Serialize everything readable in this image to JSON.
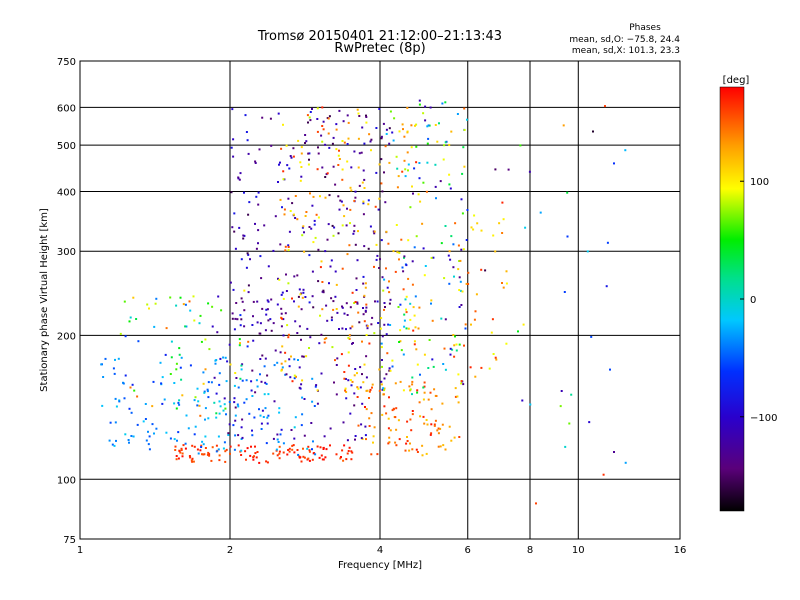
{
  "chart_data": {
    "type": "scatter",
    "title": "Tromsø 20150401 21:12:00–21:13:43",
    "subtitle": "RwPretec (8p)",
    "xlabel": "Frequency [MHz]",
    "ylabel": "Stationary phase Virtual Height [km]",
    "x_scale": "log",
    "y_scale": "log",
    "xlim": [
      1,
      16
    ],
    "ylim": [
      75,
      750
    ],
    "x_ticks": [
      1,
      2,
      4,
      6,
      8,
      10,
      16
    ],
    "x_tick_labels": [
      "1",
      "2",
      "4",
      "6",
      "8",
      "10",
      "16"
    ],
    "y_ticks": [
      75,
      100,
      200,
      300,
      400,
      500,
      600,
      750
    ],
    "y_tick_labels": [
      "75",
      "100",
      "200",
      "300",
      "400",
      "500",
      "600",
      "750"
    ],
    "grid": true,
    "stats": {
      "heading": "Phases",
      "line_o": "mean, sd,O: −75.8, 24.4",
      "line_x": "mean, sd,X: 101.3, 23.3"
    },
    "colorbar": {
      "label": "[deg]",
      "range": [
        -180,
        180
      ],
      "ticks": [
        100,
        0,
        -100
      ],
      "tick_labels": [
        "100",
        "0",
        "−100"
      ]
    },
    "groups": [
      {
        "x_min": 1.55,
        "x_max": 3.6,
        "y_min": 108,
        "y_max": 118,
        "phase_min": 150,
        "phase_max": 180,
        "count": 120
      },
      {
        "x_min": 3.6,
        "x_max": 5.8,
        "y_min": 112,
        "y_max": 160,
        "phase_min": 110,
        "phase_max": 175,
        "count": 110
      },
      {
        "x_min": 1.1,
        "x_max": 3.0,
        "y_min": 112,
        "y_max": 180,
        "phase_min": -60,
        "phase_max": -10,
        "count": 160
      },
      {
        "x_min": 1.8,
        "x_max": 4.2,
        "y_min": 120,
        "y_max": 250,
        "phase_min": -150,
        "phase_max": -90,
        "count": 160
      },
      {
        "x_min": 2.0,
        "x_max": 4.2,
        "y_min": 200,
        "y_max": 600,
        "phase_min": -160,
        "phase_max": -80,
        "count": 230
      },
      {
        "x_min": 2.5,
        "x_max": 4.8,
        "y_min": 150,
        "y_max": 600,
        "phase_min": 80,
        "phase_max": 170,
        "count": 220
      },
      {
        "x_min": 4.0,
        "x_max": 6.0,
        "y_min": 150,
        "y_max": 620,
        "phase_min": -140,
        "phase_max": 150,
        "count": 160
      },
      {
        "x_min": 5.6,
        "x_max": 7.2,
        "y_min": 160,
        "y_max": 360,
        "phase_min": 90,
        "phase_max": 170,
        "count": 45
      },
      {
        "x_min": 1.2,
        "x_max": 2.2,
        "y_min": 135,
        "y_max": 250,
        "phase_min": -80,
        "phase_max": 150,
        "count": 80
      },
      {
        "x_min": 6.5,
        "x_max": 12.5,
        "y_min": 80,
        "y_max": 660,
        "phase_min": -170,
        "phase_max": 170,
        "count": 35
      }
    ]
  }
}
